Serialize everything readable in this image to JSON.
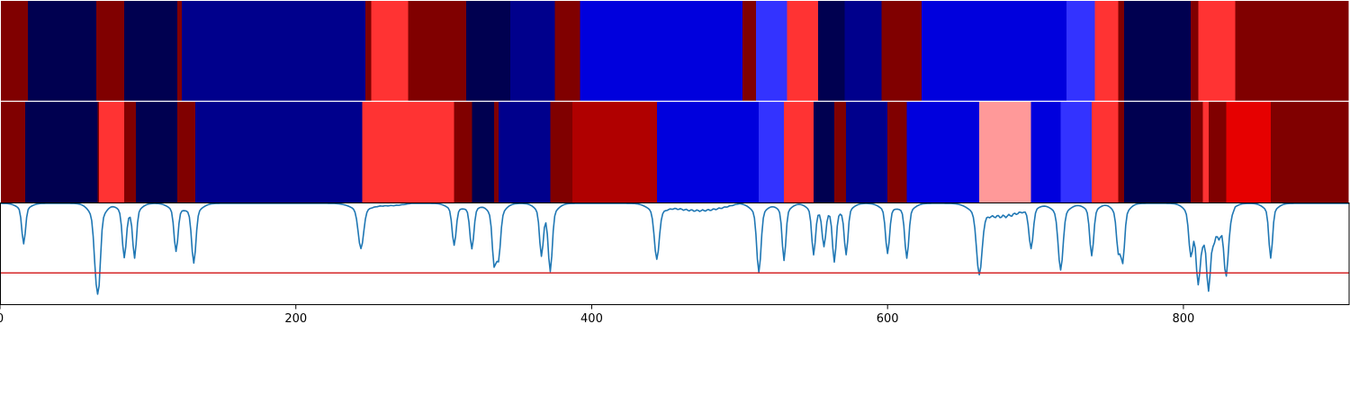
{
  "chart_data": {
    "type": "heatmap",
    "title": "",
    "xlabel": "",
    "ylabel": "",
    "xlim": [
      0,
      912
    ],
    "x_ticks": [
      0,
      200,
      400,
      600,
      800
    ],
    "x_tick_labels": [
      "0",
      "200",
      "400",
      "600",
      "800"
    ],
    "grid": false,
    "legend": "none",
    "colormap": "seismic",
    "strips": [
      {
        "segments": [
          {
            "start": 0,
            "end": 19,
            "color": "#800000"
          },
          {
            "start": 19,
            "end": 65,
            "color": "#000050"
          },
          {
            "start": 65,
            "end": 84,
            "color": "#800000"
          },
          {
            "start": 84,
            "end": 120,
            "color": "#000050"
          },
          {
            "start": 120,
            "end": 123,
            "color": "#800000"
          },
          {
            "start": 123,
            "end": 247,
            "color": "#00008c"
          },
          {
            "start": 247,
            "end": 251,
            "color": "#800000"
          },
          {
            "start": 251,
            "end": 276,
            "color": "#ff3333"
          },
          {
            "start": 276,
            "end": 315,
            "color": "#800000"
          },
          {
            "start": 315,
            "end": 345,
            "color": "#000050"
          },
          {
            "start": 345,
            "end": 375,
            "color": "#00008c"
          },
          {
            "start": 375,
            "end": 392,
            "color": "#800000"
          },
          {
            "start": 392,
            "end": 502,
            "color": "#0000dd"
          },
          {
            "start": 502,
            "end": 511,
            "color": "#800000"
          },
          {
            "start": 511,
            "end": 532,
            "color": "#3333ff"
          },
          {
            "start": 532,
            "end": 553,
            "color": "#ff3333"
          },
          {
            "start": 553,
            "end": 571,
            "color": "#000050"
          },
          {
            "start": 571,
            "end": 596,
            "color": "#00008c"
          },
          {
            "start": 596,
            "end": 623,
            "color": "#800000"
          },
          {
            "start": 623,
            "end": 721,
            "color": "#0000dd"
          },
          {
            "start": 721,
            "end": 740,
            "color": "#3333ff"
          },
          {
            "start": 740,
            "end": 756,
            "color": "#ff3333"
          },
          {
            "start": 756,
            "end": 760,
            "color": "#800000"
          },
          {
            "start": 760,
            "end": 805,
            "color": "#000050"
          },
          {
            "start": 805,
            "end": 810,
            "color": "#800000"
          },
          {
            "start": 810,
            "end": 835,
            "color": "#ff3333"
          },
          {
            "start": 835,
            "end": 912,
            "color": "#800000"
          }
        ]
      },
      {
        "segments": [
          {
            "start": 0,
            "end": 17,
            "color": "#800000"
          },
          {
            "start": 17,
            "end": 66,
            "color": "#000050"
          },
          {
            "start": 66,
            "end": 67,
            "color": "#800000"
          },
          {
            "start": 67,
            "end": 84,
            "color": "#ff3333"
          },
          {
            "start": 84,
            "end": 92,
            "color": "#800000"
          },
          {
            "start": 92,
            "end": 120,
            "color": "#000050"
          },
          {
            "start": 120,
            "end": 132,
            "color": "#800000"
          },
          {
            "start": 132,
            "end": 245,
            "color": "#00008c"
          },
          {
            "start": 245,
            "end": 307,
            "color": "#ff3333"
          },
          {
            "start": 307,
            "end": 319,
            "color": "#800000"
          },
          {
            "start": 319,
            "end": 334,
            "color": "#000050"
          },
          {
            "start": 334,
            "end": 337,
            "color": "#800000"
          },
          {
            "start": 337,
            "end": 372,
            "color": "#00008c"
          },
          {
            "start": 372,
            "end": 387,
            "color": "#800000"
          },
          {
            "start": 387,
            "end": 444,
            "color": "#b00000"
          },
          {
            "start": 444,
            "end": 513,
            "color": "#0000dd"
          },
          {
            "start": 513,
            "end": 530,
            "color": "#3333ff"
          },
          {
            "start": 530,
            "end": 550,
            "color": "#ff3333"
          },
          {
            "start": 550,
            "end": 564,
            "color": "#000050"
          },
          {
            "start": 564,
            "end": 572,
            "color": "#800000"
          },
          {
            "start": 572,
            "end": 600,
            "color": "#00008c"
          },
          {
            "start": 600,
            "end": 613,
            "color": "#800000"
          },
          {
            "start": 613,
            "end": 662,
            "color": "#0000dd"
          },
          {
            "start": 662,
            "end": 697,
            "color": "#ff9999"
          },
          {
            "start": 697,
            "end": 717,
            "color": "#0000dd"
          },
          {
            "start": 717,
            "end": 738,
            "color": "#3333ff"
          },
          {
            "start": 738,
            "end": 756,
            "color": "#ff3333"
          },
          {
            "start": 756,
            "end": 760,
            "color": "#800000"
          },
          {
            "start": 760,
            "end": 805,
            "color": "#000050"
          },
          {
            "start": 805,
            "end": 813,
            "color": "#800000"
          },
          {
            "start": 813,
            "end": 817,
            "color": "#ff3333"
          },
          {
            "start": 817,
            "end": 829,
            "color": "#800000"
          },
          {
            "start": 829,
            "end": 859,
            "color": "#e60000"
          },
          {
            "start": 859,
            "end": 912,
            "color": "#800000"
          }
        ]
      }
    ],
    "line_series": {
      "color": "#1f77b4",
      "ylim": [
        0,
        1
      ],
      "baseline": 1.0,
      "dips": [
        {
          "x": 16,
          "depth": 0.34,
          "width": 1.2
        },
        {
          "x": 65,
          "depth": 0.52,
          "width": 1.4
        },
        {
          "x": 67,
          "depth": 0.46,
          "width": 1.2
        },
        {
          "x": 84,
          "depth": 0.44,
          "width": 1.3
        },
        {
          "x": 91,
          "depth": 0.44,
          "width": 1.2
        },
        {
          "x": 119,
          "depth": 0.4,
          "width": 1.3
        },
        {
          "x": 131,
          "depth": 0.5,
          "width": 1.4
        },
        {
          "x": 244,
          "depth": 0.38,
          "width": 1.8
        },
        {
          "x": 307,
          "depth": 0.35,
          "width": 1.3
        },
        {
          "x": 319,
          "depth": 0.38,
          "width": 1.3
        },
        {
          "x": 334,
          "depth": 0.46,
          "width": 1.2
        },
        {
          "x": 337,
          "depth": 0.42,
          "width": 1.3
        },
        {
          "x": 366,
          "depth": 0.41,
          "width": 1.2
        },
        {
          "x": 372,
          "depth": 0.55,
          "width": 1.3
        },
        {
          "x": 444,
          "depth": 0.47,
          "width": 1.6
        },
        {
          "x": 513,
          "depth": 0.58,
          "width": 1.4
        },
        {
          "x": 530,
          "depth": 0.48,
          "width": 1.2
        },
        {
          "x": 550,
          "depth": 0.42,
          "width": 1.2
        },
        {
          "x": 557,
          "depth": 0.33,
          "width": 1.2
        },
        {
          "x": 564,
          "depth": 0.47,
          "width": 1.2
        },
        {
          "x": 572,
          "depth": 0.42,
          "width": 1.2
        },
        {
          "x": 600,
          "depth": 0.42,
          "width": 1.3
        },
        {
          "x": 613,
          "depth": 0.46,
          "width": 1.3
        },
        {
          "x": 662,
          "depth": 0.6,
          "width": 1.8
        },
        {
          "x": 697,
          "depth": 0.38,
          "width": 1.4
        },
        {
          "x": 717,
          "depth": 0.56,
          "width": 1.6
        },
        {
          "x": 738,
          "depth": 0.44,
          "width": 1.3
        },
        {
          "x": 756,
          "depth": 0.36,
          "width": 1.2
        },
        {
          "x": 759,
          "depth": 0.45,
          "width": 1.2
        },
        {
          "x": 805,
          "depth": 0.4,
          "width": 1.3
        },
        {
          "x": 810,
          "depth": 0.5,
          "width": 1.4
        },
        {
          "x": 817,
          "depth": 0.45,
          "width": 1.3
        },
        {
          "x": 829,
          "depth": 0.47,
          "width": 1.3
        },
        {
          "x": 859,
          "depth": 0.46,
          "width": 1.2
        }
      ],
      "broad_dips": [
        {
          "start": 247,
          "end": 278,
          "depth": 0.025
        },
        {
          "start": 444,
          "end": 500,
          "depth": 0.08
        },
        {
          "start": 662,
          "end": 696,
          "depth": 0.14
        },
        {
          "start": 805,
          "end": 835,
          "depth": 0.32
        }
      ]
    },
    "threshold": {
      "y": 0.31,
      "color": "#d62728"
    }
  }
}
